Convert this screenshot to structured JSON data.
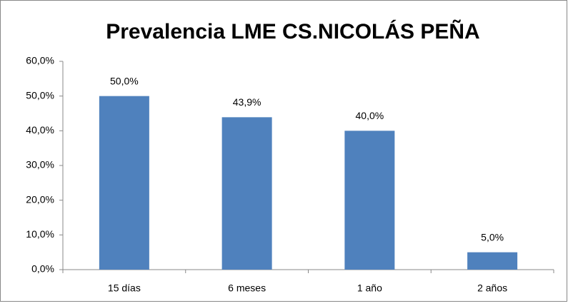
{
  "chart_data": {
    "type": "bar",
    "title": "Prevalencia LME CS.NICOLÁS PEÑA",
    "categories": [
      "15 días",
      "6 meses",
      "1 año",
      "2 años"
    ],
    "values": [
      50,
      43.9,
      40,
      5
    ],
    "value_labels": [
      "50,0%",
      "43,9%",
      "40,0%",
      "5,0%"
    ],
    "color": "#4f81bd",
    "ylim": [
      0,
      60
    ],
    "yticks": [
      {
        "value": 0,
        "label": "0,0%"
      },
      {
        "value": 10,
        "label": "10,0%"
      },
      {
        "value": 20,
        "label": "20,0%"
      },
      {
        "value": 30,
        "label": "30,0%"
      },
      {
        "value": 40,
        "label": "40,0%"
      },
      {
        "value": 50,
        "label": "50,0%"
      },
      {
        "value": 60,
        "label": "60,0%"
      }
    ],
    "grid": false
  }
}
